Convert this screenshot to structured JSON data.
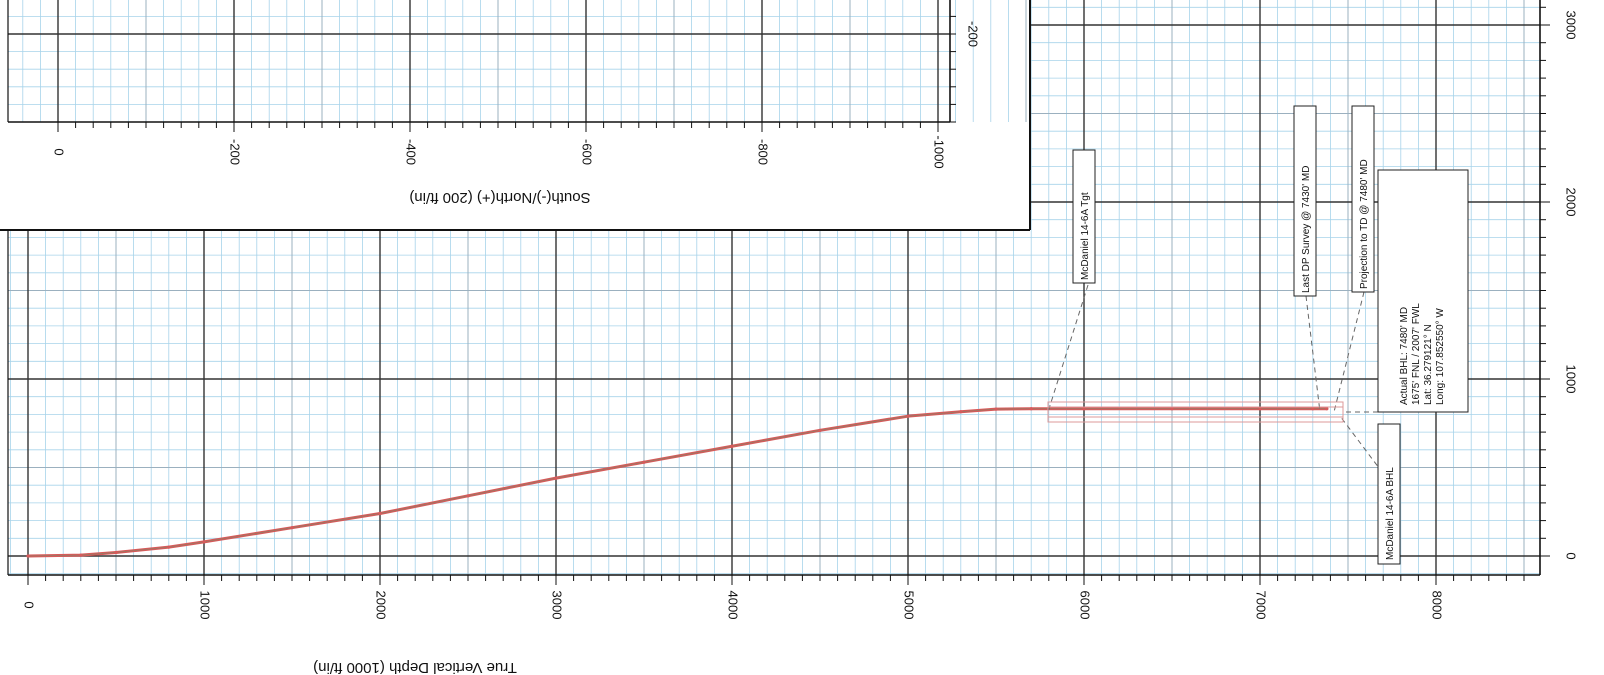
{
  "chart_data": [
    {
      "type": "line",
      "name": "vertical-section",
      "xlabel": "True Vertical Depth (1000 ft/in)",
      "ylabel": "",
      "xlim": [
        -150,
        8400
      ],
      "ylim": [
        -80,
        3400
      ],
      "x_ticks": [
        0,
        1000,
        2000,
        3000,
        4000,
        5000,
        6000,
        7000,
        8000
      ],
      "y_ticks": [
        0,
        1000,
        2000,
        3000
      ],
      "grid": true,
      "series": [
        {
          "color": "#d75a5a",
          "x": [
            0,
            300,
            500,
            800,
            1000,
            1500,
            2000,
            2500,
            3000,
            3500,
            4000,
            4500,
            5000,
            5300,
            5500,
            5700,
            6000,
            6500,
            7000,
            7300,
            7380
          ],
          "y": [
            0,
            5,
            20,
            50,
            80,
            160,
            240,
            340,
            440,
            530,
            620,
            710,
            790,
            815,
            830,
            832,
            832,
            832,
            832,
            832,
            832
          ]
        }
      ]
    },
    {
      "type": "line",
      "name": "plan-view-inset",
      "xlabel": "South(-)/North(+) (200 ft/in)",
      "xlim": [
        50,
        -1050
      ],
      "x_ticks": [
        0,
        -200,
        -400,
        -600,
        -800,
        -1000
      ],
      "y_ticks": [
        -200
      ],
      "grid": true,
      "series": []
    }
  ],
  "annotations": {
    "target": "McDaniel 14-6A Tgt",
    "last_survey": "Last DP Survey @ 7430' MD",
    "projection": "Projection to TD @ 7480' MD",
    "bhl_label": "McDaniel 14-6A BHL",
    "bhl_info": [
      "Actual BHL: 7480' MD",
      "1675' FNL / 2007' FWL",
      "Lat: 36.279121° N",
      "Long: 107.852550° W"
    ]
  }
}
